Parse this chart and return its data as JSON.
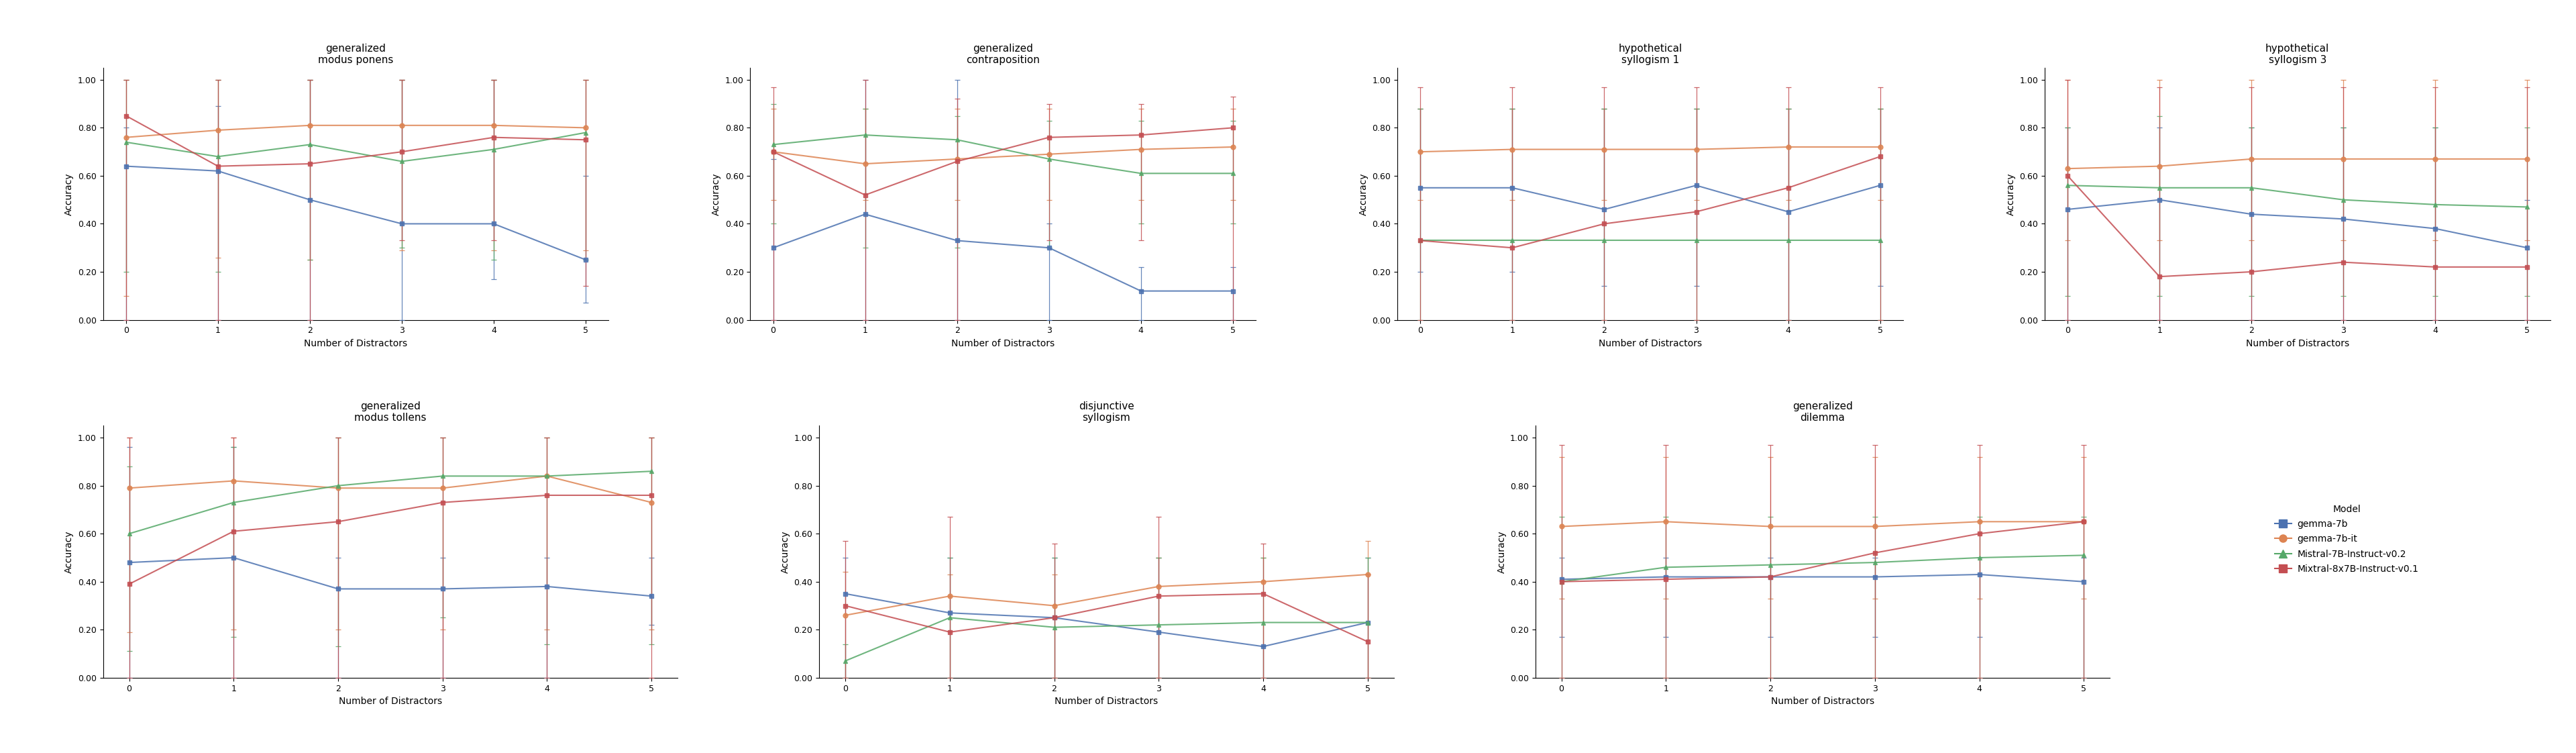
{
  "models": [
    "gemma-7b",
    "gemma-7b-it",
    "Mistral-7B-Instruct-v0.2",
    "Mixtral-8x7B-Instruct-v0.1"
  ],
  "colors": [
    "#4C72B0",
    "#DD8452",
    "#55A868",
    "#C44E52"
  ],
  "markers": [
    "s",
    "o",
    "^",
    "s"
  ],
  "x": [
    0,
    1,
    2,
    3,
    4,
    5
  ],
  "data": {
    "generalized modus ponens": {
      "gemma-7b": {
        "mean": [
          0.64,
          0.62,
          0.5,
          0.4,
          0.4,
          0.25
        ],
        "min": [
          0.0,
          0.0,
          0.0,
          0.0,
          0.17,
          0.07
        ],
        "max": [
          0.8,
          0.89,
          1.0,
          1.0,
          1.0,
          0.6
        ]
      },
      "gemma-7b-it": {
        "mean": [
          0.76,
          0.79,
          0.81,
          0.81,
          0.81,
          0.8
        ],
        "min": [
          0.1,
          0.26,
          0.25,
          0.29,
          0.29,
          0.29
        ],
        "max": [
          1.0,
          1.0,
          1.0,
          1.0,
          1.0,
          1.0
        ]
      },
      "Mistral-7B-Instruct-v0.2": {
        "mean": [
          0.74,
          0.68,
          0.73,
          0.66,
          0.71,
          0.78
        ],
        "min": [
          0.2,
          0.2,
          0.25,
          0.3,
          0.25,
          0.25
        ],
        "max": [
          1.0,
          1.0,
          1.0,
          1.0,
          1.0,
          1.0
        ]
      },
      "Mixtral-8x7B-Instruct-v0.1": {
        "mean": [
          0.85,
          0.64,
          0.65,
          0.7,
          0.76,
          0.75
        ],
        "min": [
          0.0,
          0.0,
          0.0,
          0.33,
          0.33,
          0.14
        ],
        "max": [
          1.0,
          1.0,
          1.0,
          1.0,
          1.0,
          1.0
        ]
      }
    },
    "generalized contraposition": {
      "gemma-7b": {
        "mean": [
          0.3,
          0.44,
          0.33,
          0.3,
          0.12,
          0.12
        ],
        "min": [
          0.0,
          0.0,
          0.0,
          0.0,
          0.0,
          0.0
        ],
        "max": [
          0.67,
          1.0,
          1.0,
          0.4,
          0.22,
          0.22
        ]
      },
      "gemma-7b-it": {
        "mean": [
          0.7,
          0.65,
          0.67,
          0.69,
          0.71,
          0.72
        ],
        "min": [
          0.5,
          0.5,
          0.5,
          0.5,
          0.5,
          0.5
        ],
        "max": [
          0.88,
          0.88,
          0.88,
          0.88,
          0.88,
          0.88
        ]
      },
      "Mistral-7B-Instruct-v0.2": {
        "mean": [
          0.73,
          0.77,
          0.75,
          0.67,
          0.61,
          0.61
        ],
        "min": [
          0.4,
          0.3,
          0.3,
          0.3,
          0.4,
          0.4
        ],
        "max": [
          0.9,
          0.88,
          0.85,
          0.83,
          0.83,
          0.83
        ]
      },
      "Mixtral-8x7B-Instruct-v0.1": {
        "mean": [
          0.7,
          0.52,
          0.66,
          0.76,
          0.77,
          0.8
        ],
        "min": [
          0.0,
          0.0,
          0.0,
          0.33,
          0.33,
          0.0
        ],
        "max": [
          0.97,
          1.0,
          0.92,
          0.9,
          0.9,
          0.93
        ]
      }
    },
    "hypothetical syllogism 1": {
      "gemma-7b": {
        "mean": [
          0.55,
          0.55,
          0.46,
          0.56,
          0.45,
          0.56
        ],
        "min": [
          0.2,
          0.2,
          0.14,
          0.14,
          0.0,
          0.14
        ],
        "max": [
          0.88,
          0.88,
          0.88,
          0.88,
          0.88,
          0.88
        ]
      },
      "gemma-7b-it": {
        "mean": [
          0.7,
          0.71,
          0.71,
          0.71,
          0.72,
          0.72
        ],
        "min": [
          0.5,
          0.5,
          0.5,
          0.5,
          0.5,
          0.5
        ],
        "max": [
          0.88,
          0.88,
          0.88,
          0.88,
          0.88,
          0.88
        ]
      },
      "Mistral-7B-Instruct-v0.2": {
        "mean": [
          0.33,
          0.33,
          0.33,
          0.33,
          0.33,
          0.33
        ],
        "min": [
          0.0,
          0.0,
          0.0,
          0.0,
          0.0,
          0.0
        ],
        "max": [
          0.88,
          0.88,
          0.88,
          0.88,
          0.88,
          0.88
        ]
      },
      "Mixtral-8x7B-Instruct-v0.1": {
        "mean": [
          0.33,
          0.3,
          0.4,
          0.45,
          0.55,
          0.68
        ],
        "min": [
          0.0,
          0.0,
          0.0,
          0.0,
          0.0,
          0.0
        ],
        "max": [
          0.97,
          0.97,
          0.97,
          0.97,
          0.97,
          0.97
        ]
      }
    },
    "hypothetical syllogism 3": {
      "gemma-7b": {
        "mean": [
          0.46,
          0.5,
          0.44,
          0.42,
          0.38,
          0.3
        ],
        "min": [
          0.0,
          0.0,
          0.0,
          0.0,
          0.0,
          0.0
        ],
        "max": [
          0.8,
          0.8,
          0.8,
          0.8,
          0.8,
          0.5
        ]
      },
      "gemma-7b-it": {
        "mean": [
          0.63,
          0.64,
          0.67,
          0.67,
          0.67,
          0.67
        ],
        "min": [
          0.33,
          0.33,
          0.33,
          0.33,
          0.33,
          0.33
        ],
        "max": [
          1.0,
          1.0,
          1.0,
          1.0,
          1.0,
          1.0
        ]
      },
      "Mistral-7B-Instruct-v0.2": {
        "mean": [
          0.56,
          0.55,
          0.55,
          0.5,
          0.48,
          0.47
        ],
        "min": [
          0.1,
          0.1,
          0.1,
          0.1,
          0.1,
          0.1
        ],
        "max": [
          0.8,
          0.85,
          0.8,
          0.8,
          0.8,
          0.8
        ]
      },
      "Mixtral-8x7B-Instruct-v0.1": {
        "mean": [
          0.6,
          0.18,
          0.2,
          0.24,
          0.22,
          0.22
        ],
        "min": [
          0.0,
          0.0,
          0.0,
          0.0,
          0.0,
          0.0
        ],
        "max": [
          1.0,
          0.97,
          0.97,
          0.97,
          0.97,
          0.97
        ]
      }
    },
    "generalized modus tollens": {
      "gemma-7b": {
        "mean": [
          0.48,
          0.5,
          0.37,
          0.37,
          0.38,
          0.34
        ],
        "min": [
          0.0,
          0.0,
          0.0,
          0.0,
          0.0,
          0.22
        ],
        "max": [
          0.96,
          0.96,
          0.5,
          0.5,
          0.5,
          0.5
        ]
      },
      "gemma-7b-it": {
        "mean": [
          0.79,
          0.82,
          0.79,
          0.79,
          0.84,
          0.73
        ],
        "min": [
          0.19,
          0.2,
          0.2,
          0.2,
          0.2,
          0.2
        ],
        "max": [
          1.0,
          1.0,
          1.0,
          1.0,
          1.0,
          1.0
        ]
      },
      "Mistral-7B-Instruct-v0.2": {
        "mean": [
          0.6,
          0.73,
          0.8,
          0.84,
          0.84,
          0.86
        ],
        "min": [
          0.11,
          0.17,
          0.13,
          0.25,
          0.14,
          0.14
        ],
        "max": [
          0.88,
          0.96,
          1.0,
          1.0,
          1.0,
          1.0
        ]
      },
      "Mixtral-8x7B-Instruct-v0.1": {
        "mean": [
          0.39,
          0.61,
          0.65,
          0.73,
          0.76,
          0.76
        ],
        "min": [
          0.0,
          0.0,
          0.0,
          0.0,
          0.0,
          0.0
        ],
        "max": [
          1.0,
          1.0,
          1.0,
          1.0,
          1.0,
          1.0
        ]
      }
    },
    "disjunctive syllogism": {
      "gemma-7b": {
        "mean": [
          0.35,
          0.27,
          0.25,
          0.19,
          0.13,
          0.23
        ],
        "min": [
          0.0,
          0.0,
          0.0,
          0.0,
          0.0,
          0.0
        ],
        "max": [
          0.5,
          0.5,
          0.5,
          0.5,
          0.0,
          0.5
        ]
      },
      "gemma-7b-it": {
        "mean": [
          0.26,
          0.34,
          0.3,
          0.38,
          0.4,
          0.43
        ],
        "min": [
          0.0,
          0.0,
          0.0,
          0.0,
          0.0,
          0.0
        ],
        "max": [
          0.44,
          0.43,
          0.43,
          0.5,
          0.5,
          0.57
        ]
      },
      "Mistral-7B-Instruct-v0.2": {
        "mean": [
          0.07,
          0.25,
          0.21,
          0.22,
          0.23,
          0.23
        ],
        "min": [
          0.0,
          0.0,
          0.0,
          0.0,
          0.0,
          0.0
        ],
        "max": [
          0.14,
          0.5,
          0.5,
          0.5,
          0.5,
          0.5
        ]
      },
      "Mixtral-8x7B-Instruct-v0.1": {
        "mean": [
          0.3,
          0.19,
          0.25,
          0.34,
          0.35,
          0.15
        ],
        "min": [
          0.0,
          0.0,
          0.0,
          0.0,
          0.0,
          0.0
        ],
        "max": [
          0.57,
          0.67,
          0.56,
          0.67,
          0.56,
          0.43
        ]
      }
    },
    "generalized dilemma": {
      "gemma-7b": {
        "mean": [
          0.41,
          0.42,
          0.42,
          0.42,
          0.43,
          0.4
        ],
        "min": [
          0.17,
          0.17,
          0.17,
          0.17,
          0.17,
          0.0
        ],
        "max": [
          0.5,
          0.5,
          0.5,
          0.5,
          0.5,
          0.5
        ]
      },
      "gemma-7b-it": {
        "mean": [
          0.63,
          0.65,
          0.63,
          0.63,
          0.65,
          0.65
        ],
        "min": [
          0.33,
          0.33,
          0.33,
          0.33,
          0.33,
          0.33
        ],
        "max": [
          0.92,
          0.92,
          0.92,
          0.92,
          0.92,
          0.92
        ]
      },
      "Mistral-7B-Instruct-v0.2": {
        "mean": [
          0.4,
          0.46,
          0.47,
          0.48,
          0.5,
          0.51
        ],
        "min": [
          0.0,
          0.0,
          0.0,
          0.0,
          0.0,
          0.0
        ],
        "max": [
          0.67,
          0.67,
          0.67,
          0.67,
          0.67,
          0.67
        ]
      },
      "Mixtral-8x7B-Instruct-v0.1": {
        "mean": [
          0.4,
          0.41,
          0.42,
          0.52,
          0.6,
          0.65
        ],
        "min": [
          0.0,
          0.0,
          0.0,
          0.0,
          0.0,
          0.0
        ],
        "max": [
          0.97,
          0.97,
          0.97,
          0.97,
          0.97,
          0.97
        ]
      }
    }
  },
  "subplot_order": [
    "generalized modus ponens",
    "generalized contraposition",
    "hypothetical syllogism 1",
    "hypothetical syllogism 3",
    "generalized modus tollens",
    "disjunctive syllogism",
    "generalized dilemma"
  ],
  "subplot_titles": [
    "generalized\nmodus ponens",
    "generalized\ncontraposition",
    "hypothetical\nsyllogism 1",
    "hypothetical\nsyllogism 3",
    "generalized\nmodus tollens",
    "disjunctive\nsyllogism",
    "generalized\ndilemma"
  ],
  "xlabel": "Number of Distractors",
  "ylabel": "Accuracy",
  "ylim": [
    0.0,
    1.05
  ],
  "yticks": [
    0.0,
    0.2,
    0.4,
    0.6,
    0.8,
    1.0
  ],
  "xticks": [
    0,
    1,
    2,
    3,
    4,
    5
  ],
  "legend_title": "Model"
}
